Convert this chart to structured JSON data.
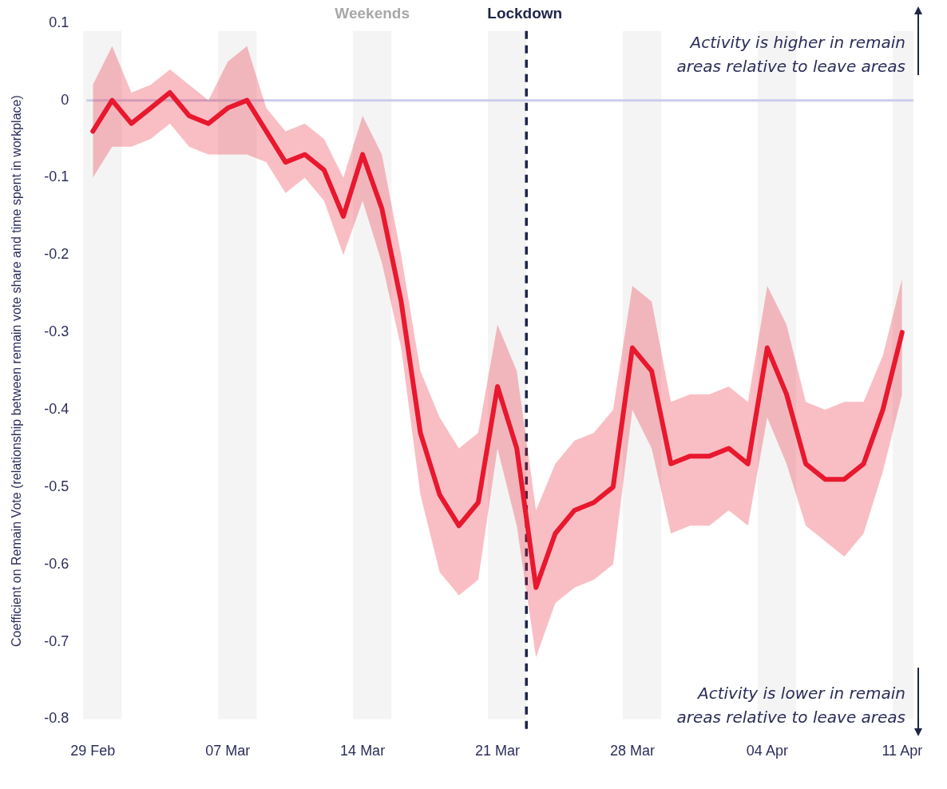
{
  "chart_data": {
    "type": "line",
    "ylabel": "Coefficient on Remain Vote (relationship between remain vote share and time spent in workplace)",
    "x": [
      "--02-29",
      "--03-01",
      "--03-02",
      "--03-03",
      "--03-04",
      "--03-05",
      "--03-06",
      "--03-07",
      "--03-08",
      "--03-09",
      "--03-10",
      "--03-11",
      "--03-12",
      "--03-13",
      "--03-14",
      "--03-15",
      "--03-16",
      "--03-17",
      "--03-18",
      "--03-19",
      "--03-20",
      "--03-21",
      "--03-22",
      "--03-23",
      "--03-24",
      "--03-25",
      "--03-26",
      "--03-27",
      "--03-28",
      "--03-29",
      "--03-30",
      "--03-31",
      "--04-01",
      "--04-02",
      "--04-03",
      "--04-04",
      "--04-05",
      "--04-06",
      "--04-07",
      "--04-08",
      "--04-09",
      "--04-10",
      "--04-11"
    ],
    "xlim": [
      "--02-28T12:00",
      "--04-11T14:00"
    ],
    "xticks": [
      {
        "value": "--02-29",
        "label": "29 Feb"
      },
      {
        "value": "--03-07",
        "label": "07 Mar"
      },
      {
        "value": "--03-14",
        "label": "14 Mar"
      },
      {
        "value": "--03-21",
        "label": "21 Mar"
      },
      {
        "value": "--03-28",
        "label": "28 Mar"
      },
      {
        "value": "--04-04",
        "label": "04 Apr"
      },
      {
        "value": "--04-11",
        "label": "11 Apr"
      }
    ],
    "ylim": [
      -0.8,
      0.1
    ],
    "yticks": [
      -0.8,
      -0.7,
      -0.6,
      -0.5,
      -0.4,
      -0.3,
      -0.2,
      -0.1,
      0,
      0.1
    ],
    "marker": "none",
    "series": [
      {
        "color": "#e8182f",
        "values": [
          -0.04,
          0.0,
          -0.03,
          -0.01,
          0.01,
          -0.02,
          -0.03,
          -0.01,
          0.0,
          -0.04,
          -0.08,
          -0.07,
          -0.09,
          -0.15,
          -0.07,
          -0.14,
          -0.26,
          -0.43,
          -0.51,
          -0.55,
          -0.52,
          -0.37,
          -0.45,
          -0.63,
          -0.56,
          -0.53,
          -0.52,
          -0.5,
          -0.32,
          -0.35,
          -0.47,
          -0.46,
          -0.46,
          -0.45,
          -0.47,
          -0.32,
          -0.38,
          -0.47,
          -0.49,
          -0.49,
          -0.47,
          -0.4,
          -0.3
        ],
        "upper": [
          0.02,
          0.07,
          0.01,
          0.02,
          0.04,
          0.02,
          0.0,
          0.05,
          0.07,
          -0.01,
          -0.04,
          -0.03,
          -0.05,
          -0.1,
          -0.02,
          -0.07,
          -0.2,
          -0.35,
          -0.41,
          -0.45,
          -0.43,
          -0.29,
          -0.35,
          -0.53,
          -0.47,
          -0.44,
          -0.43,
          -0.4,
          -0.24,
          -0.26,
          -0.39,
          -0.38,
          -0.38,
          -0.37,
          -0.39,
          -0.24,
          -0.29,
          -0.39,
          -0.4,
          -0.39,
          -0.39,
          -0.33,
          -0.23
        ],
        "lower": [
          -0.1,
          -0.06,
          -0.06,
          -0.05,
          -0.03,
          -0.06,
          -0.07,
          -0.07,
          -0.07,
          -0.08,
          -0.12,
          -0.1,
          -0.13,
          -0.2,
          -0.13,
          -0.21,
          -0.32,
          -0.51,
          -0.61,
          -0.64,
          -0.62,
          -0.45,
          -0.55,
          -0.72,
          -0.65,
          -0.63,
          -0.62,
          -0.6,
          -0.4,
          -0.45,
          -0.56,
          -0.55,
          -0.55,
          -0.53,
          -0.55,
          -0.41,
          -0.47,
          -0.55,
          -0.57,
          -0.59,
          -0.56,
          -0.48,
          -0.38
        ]
      }
    ],
    "bands": [
      {
        "axis": "x",
        "from": "--02-28T12:00",
        "to": "--03-01T12:00",
        "color": "#f4f4f4"
      },
      {
        "axis": "x",
        "from": "--03-06T12:00",
        "to": "--03-08T12:00",
        "color": "#f4f4f4"
      },
      {
        "axis": "x",
        "from": "--03-13T12:00",
        "to": "--03-15T12:00",
        "color": "#f4f4f4",
        "label": "Weekends"
      },
      {
        "axis": "x",
        "from": "--03-20T12:00",
        "to": "--03-22T12:00",
        "color": "#f4f4f4"
      },
      {
        "axis": "x",
        "from": "--03-27T12:00",
        "to": "--03-29T12:00",
        "color": "#f4f4f4"
      },
      {
        "axis": "x",
        "from": "--04-03T12:00",
        "to": "--04-05T12:00",
        "color": "#f4f4f4"
      },
      {
        "axis": "x",
        "from": "--04-10T12:00",
        "to": "--04-11T14:00",
        "color": "#f4f4f4"
      }
    ],
    "ref_lines": [
      {
        "axis": "y",
        "value": 0,
        "color": "#c9cdec",
        "line_style": "solid"
      },
      {
        "axis": "x",
        "value": "--03-22T12:00",
        "label": "Lockdown",
        "color": "#1e2548",
        "line_style": "dashed"
      }
    ],
    "annotations": [
      "Activity is higher in remain areas relative to leave areas",
      "Activity is lower in remain areas relative to leave areas"
    ]
  }
}
